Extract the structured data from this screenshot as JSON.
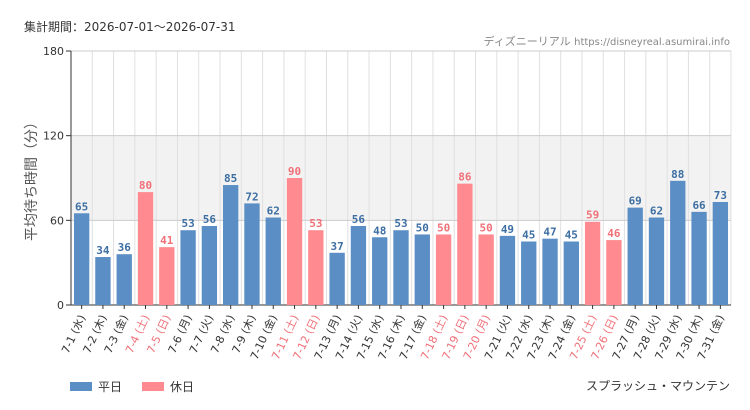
{
  "header": {
    "period": "集計期間：2026-07-01〜2026-07-31",
    "source_name": "ディズニーリアル",
    "source_url": "https://disneyreal.asumirai.info"
  },
  "attraction_name": "スプラッシュ・マウンテン",
  "colors": {
    "weekday": "#5b8ec4",
    "holiday": "#ff8a8f",
    "weekday_text": "#3d6fa3",
    "holiday_text": "#f07078",
    "band": "#f2f2f2",
    "grid": "#e0e0e0",
    "axis": "#333333"
  },
  "chart_data": {
    "type": "bar",
    "ylabel": "平均待ち時間（分）",
    "ylim": [
      0,
      180
    ],
    "yticks": [
      0,
      60,
      120,
      180
    ],
    "categories": [
      "7-1 (水)",
      "7-2 (木)",
      "7-3 (金)",
      "7-4 (土)",
      "7-5 (日)",
      "7-6 (月)",
      "7-7 (火)",
      "7-8 (水)",
      "7-9 (木)",
      "7-10 (金)",
      "7-11 (土)",
      "7-12 (日)",
      "7-13 (月)",
      "7-14 (火)",
      "7-15 (水)",
      "7-16 (木)",
      "7-17 (金)",
      "7-18 (土)",
      "7-19 (日)",
      "7-20 (月)",
      "7-21 (火)",
      "7-22 (水)",
      "7-23 (木)",
      "7-24 (金)",
      "7-25 (土)",
      "7-26 (日)",
      "7-27 (月)",
      "7-28 (火)",
      "7-29 (水)",
      "7-30 (木)",
      "7-31 (金)"
    ],
    "values": [
      65,
      34,
      36,
      80,
      41,
      53,
      56,
      85,
      72,
      62,
      90,
      53,
      37,
      56,
      48,
      53,
      50,
      50,
      86,
      50,
      49,
      45,
      47,
      45,
      59,
      46,
      69,
      62,
      88,
      66,
      73
    ],
    "day_type": [
      "weekday",
      "weekday",
      "weekday",
      "holiday",
      "holiday",
      "weekday",
      "weekday",
      "weekday",
      "weekday",
      "weekday",
      "holiday",
      "holiday",
      "weekday",
      "weekday",
      "weekday",
      "weekday",
      "weekday",
      "holiday",
      "holiday",
      "holiday",
      "weekday",
      "weekday",
      "weekday",
      "weekday",
      "holiday",
      "holiday",
      "weekday",
      "weekday",
      "weekday",
      "weekday",
      "weekday"
    ],
    "legend": [
      {
        "key": "weekday",
        "label": "平日"
      },
      {
        "key": "holiday",
        "label": "休日"
      }
    ],
    "legend_position": "bottom-left",
    "band": [
      60,
      120
    ],
    "grid": true
  }
}
